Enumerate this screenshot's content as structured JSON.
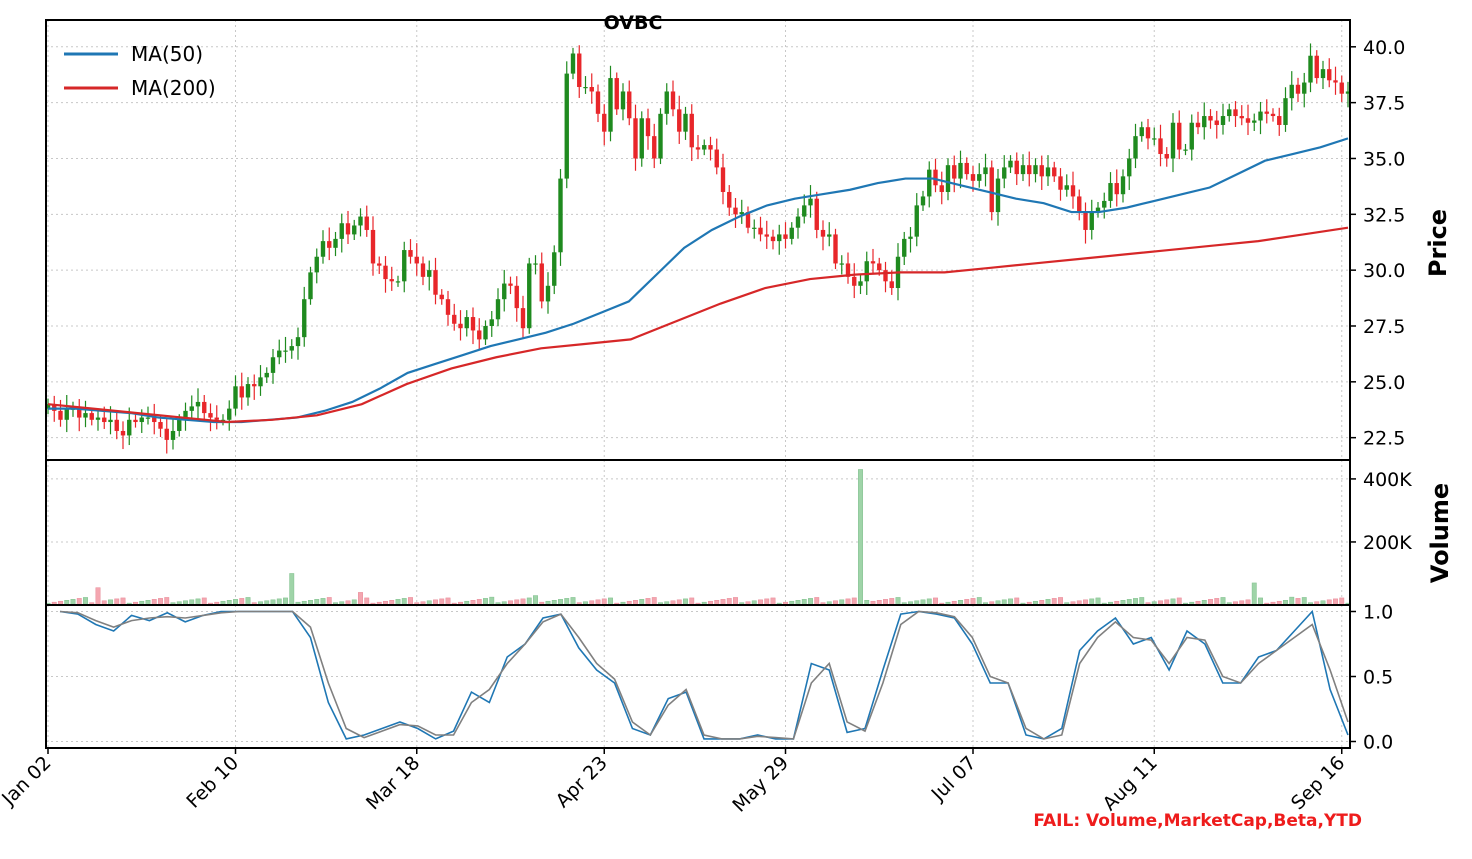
{
  "chart_data": {
    "type": "candlestick",
    "title": "OVBC",
    "x_tick_labels": [
      "Jan 02",
      "Feb 10",
      "Mar 18",
      "Apr 23",
      "May 29",
      "Jul 07",
      "Aug 11",
      "Sep 16"
    ],
    "price_panel": {
      "ylabel": "Price",
      "ylim": [
        21.5,
        41.2
      ],
      "y_ticks": [
        22.5,
        25.0,
        27.5,
        30.0,
        32.5,
        35.0,
        37.5,
        40.0
      ],
      "y_tick_labels": [
        "22.5",
        "25.0",
        "27.5",
        "30.0",
        "32.5",
        "35.0",
        "37.5",
        "40.0"
      ],
      "grid": true,
      "legend_position": "top-left",
      "up_color": "#1f8a1f",
      "down_color": "#e8262a",
      "closes": [
        24.0,
        23.7,
        23.3,
        23.8,
        23.8,
        23.4,
        23.6,
        23.3,
        23.4,
        23.2,
        23.3,
        22.8,
        22.6,
        23.3,
        23.2,
        23.4,
        23.4,
        23.2,
        22.9,
        22.4,
        22.8,
        23.3,
        23.7,
        23.9,
        24.1,
        23.6,
        23.4,
        23.3,
        23.3,
        23.8,
        24.8,
        24.3,
        24.9,
        24.8,
        25.2,
        25.4,
        26.1,
        26.4,
        26.4,
        26.6,
        27.0,
        28.7,
        29.9,
        30.6,
        31.3,
        31.0,
        31.4,
        32.1,
        31.6,
        32.0,
        32.4,
        31.8,
        30.3,
        30.2,
        29.6,
        29.5,
        29.5,
        30.9,
        30.6,
        30.3,
        29.7,
        30.0,
        28.9,
        28.7,
        28.0,
        27.6,
        27.4,
        27.9,
        27.3,
        26.9,
        27.5,
        27.8,
        28.7,
        29.4,
        29.3,
        28.3,
        27.4,
        30.3,
        30.3,
        28.6,
        29.3,
        30.8,
        34.1,
        38.8,
        39.7,
        38.2,
        38.2,
        38.0,
        37.0,
        36.2,
        38.6,
        37.2,
        38.0,
        36.8,
        35.0,
        36.8,
        36.0,
        35.0,
        37.0,
        38.0,
        37.2,
        36.2,
        37.0,
        35.5,
        35.4,
        35.6,
        35.4,
        34.6,
        33.5,
        32.8,
        32.5,
        32.6,
        31.9,
        31.9,
        31.6,
        31.5,
        31.3,
        31.6,
        31.4,
        31.9,
        32.4,
        32.9,
        33.2,
        31.8,
        31.5,
        31.6,
        30.3,
        30.3,
        29.7,
        29.3,
        29.5,
        30.4,
        30.3,
        30.0,
        29.5,
        29.2,
        30.6,
        31.4,
        31.5,
        32.9,
        33.3,
        34.5,
        33.8,
        33.5,
        34.7,
        34.1,
        34.8,
        34.3,
        34.0,
        34.3,
        34.6,
        32.6,
        34.1,
        34.6,
        34.9,
        34.3,
        34.7,
        34.3,
        34.7,
        34.2,
        34.6,
        34.2,
        33.6,
        33.8,
        33.3,
        32.6,
        31.8,
        32.6,
        32.8,
        33.1,
        33.9,
        33.4,
        34.2,
        35.0,
        36.0,
        36.4,
        35.9,
        35.9,
        35.2,
        35.0,
        36.6,
        35.4,
        35.4,
        36.6,
        36.4,
        36.9,
        36.7,
        36.5,
        36.9,
        37.2,
        36.9,
        36.8,
        36.6,
        36.7,
        37.1,
        37.0,
        36.9,
        36.5,
        37.7,
        38.3,
        37.9,
        38.4,
        39.6,
        38.6,
        39.0,
        38.5,
        38.4,
        37.9,
        38.0
      ],
      "opens": [
        23.8,
        24.0,
        23.7,
        23.3,
        23.8,
        23.8,
        23.4,
        23.6,
        23.3,
        23.4,
        23.2,
        23.3,
        22.8,
        22.6,
        23.3,
        23.2,
        23.4,
        23.4,
        23.2,
        22.9,
        22.4,
        22.8,
        23.3,
        23.7,
        23.9,
        24.1,
        23.6,
        23.4,
        23.3,
        23.3,
        23.8,
        24.8,
        24.3,
        24.9,
        24.8,
        25.2,
        25.4,
        26.1,
        26.4,
        26.4,
        26.6,
        27.0,
        28.7,
        29.9,
        30.6,
        31.3,
        31.0,
        31.4,
        32.1,
        31.6,
        32.0,
        32.4,
        31.8,
        30.3,
        30.2,
        29.6,
        29.5,
        29.5,
        30.9,
        30.6,
        30.3,
        29.7,
        30.0,
        28.9,
        28.7,
        28.0,
        27.6,
        27.4,
        27.9,
        27.3,
        26.9,
        27.5,
        27.8,
        28.7,
        29.4,
        29.3,
        28.3,
        27.4,
        30.3,
        30.3,
        28.6,
        29.3,
        30.8,
        34.1,
        38.8,
        39.7,
        38.2,
        38.2,
        38.0,
        37.0,
        36.2,
        38.6,
        37.2,
        38.0,
        36.8,
        35.0,
        36.8,
        36.0,
        35.0,
        37.0,
        38.0,
        37.2,
        36.2,
        37.0,
        35.5,
        35.4,
        35.6,
        35.4,
        34.6,
        33.5,
        32.8,
        32.5,
        32.6,
        31.9,
        31.9,
        31.6,
        31.5,
        31.3,
        31.6,
        31.4,
        31.9,
        32.4,
        32.9,
        33.2,
        31.8,
        31.5,
        31.6,
        30.3,
        30.3,
        29.7,
        29.3,
        29.5,
        30.4,
        30.3,
        30.0,
        29.5,
        29.2,
        30.6,
        31.4,
        31.5,
        32.9,
        33.3,
        34.5,
        33.8,
        33.5,
        34.7,
        34.1,
        34.8,
        34.3,
        34.0,
        34.3,
        34.6,
        32.6,
        34.1,
        34.6,
        34.9,
        34.3,
        34.7,
        34.3,
        34.7,
        34.2,
        34.6,
        34.2,
        33.6,
        33.8,
        33.3,
        32.6,
        31.8,
        32.6,
        32.8,
        33.1,
        33.9,
        33.4,
        34.2,
        35.0,
        36.0,
        36.4,
        35.9,
        35.9,
        35.2,
        35.0,
        36.6,
        35.4,
        35.4,
        36.6,
        36.4,
        36.9,
        36.7,
        36.5,
        36.9,
        37.2,
        36.9,
        36.8,
        36.6,
        36.7,
        37.1,
        37.0,
        36.9,
        36.5,
        37.7,
        38.3,
        37.9,
        38.4,
        39.6,
        38.6,
        39.0,
        38.5,
        38.4,
        37.9
      ],
      "ma50": [
        23.8,
        23.8,
        23.7,
        23.6,
        23.4,
        23.3,
        23.2,
        23.2,
        23.3,
        23.4,
        23.7,
        24.1,
        24.7,
        25.4,
        25.8,
        26.2,
        26.6,
        26.9,
        27.2,
        27.6,
        28.1,
        28.6,
        29.8,
        31.0,
        31.8,
        32.4,
        32.9,
        33.2,
        33.4,
        33.6,
        33.9,
        34.1,
        34.1,
        33.8,
        33.5,
        33.2,
        33.0,
        32.6,
        32.6,
        32.8,
        33.1,
        33.4,
        33.7,
        34.3,
        34.9,
        35.2,
        35.5,
        35.9
      ],
      "ma50_x": [
        0,
        4,
        8,
        12,
        16,
        20,
        24,
        28,
        32,
        36,
        40,
        44,
        48,
        52,
        56,
        60,
        64,
        68,
        72,
        76,
        80,
        84,
        88,
        92,
        96,
        100,
        104,
        108,
        112,
        116,
        120,
        124,
        128,
        132,
        136,
        140,
        144,
        148,
        152,
        156,
        160,
        164,
        168,
        172,
        176,
        180,
        184,
        188
      ],
      "ma200": [
        24.0,
        23.8,
        23.6,
        23.4,
        23.2,
        23.3,
        23.5,
        24.0,
        24.9,
        25.6,
        26.1,
        26.5,
        26.7,
        26.9,
        27.7,
        28.5,
        29.2,
        29.6,
        29.8,
        29.9,
        29.9,
        30.1,
        30.3,
        30.5,
        30.7,
        30.9,
        31.1,
        31.3,
        31.6,
        31.9
      ],
      "ma200_x": [
        0,
        4,
        8,
        12,
        16,
        20,
        24,
        28,
        32,
        36,
        40,
        44,
        48,
        52,
        56,
        60,
        64,
        68,
        72,
        76,
        80,
        84,
        88,
        92,
        96,
        100,
        104,
        108,
        112,
        116
      ],
      "series": [
        {
          "name": "MA(50)",
          "color": "#1f77b4"
        },
        {
          "name": "MA(200)",
          "color": "#d62728"
        }
      ]
    },
    "volume_panel": {
      "ylabel": "Volume",
      "ylim": [
        0,
        460000
      ],
      "y_ticks": [
        200000,
        400000
      ],
      "y_tick_labels": [
        "200K",
        "400K"
      ],
      "grid": true,
      "spikes": [
        {
          "idx": 8,
          "value": 55000,
          "dir": "down"
        },
        {
          "idx": 39,
          "value": 100000,
          "dir": "up"
        },
        {
          "idx": 50,
          "value": 40000,
          "dir": "down"
        },
        {
          "idx": 71,
          "value": 25000,
          "dir": "up"
        },
        {
          "idx": 78,
          "value": 30000,
          "dir": "up"
        },
        {
          "idx": 130,
          "value": 430000,
          "dir": "up"
        },
        {
          "idx": 131,
          "value": 15000,
          "dir": "up"
        },
        {
          "idx": 193,
          "value": 70000,
          "dir": "up"
        },
        {
          "idx": 199,
          "value": 25000,
          "dir": "up"
        }
      ]
    },
    "oscillator_panel": {
      "ylim": [
        -0.05,
        1.05
      ],
      "y_ticks": [
        0.0,
        0.5,
        1.0
      ],
      "y_tick_labels": [
        "0.0",
        "0.5",
        "1.0"
      ],
      "grid": true,
      "series": [
        {
          "color": "#1f77b4",
          "values": [
            1.0,
            0.98,
            0.9,
            0.85,
            0.97,
            0.93,
            0.99,
            0.92,
            0.97,
            1.0,
            1.0,
            1.0,
            1.0,
            1.0,
            0.8,
            0.3,
            0.02,
            0.05,
            0.1,
            0.15,
            0.1,
            0.02,
            0.08,
            0.38,
            0.3,
            0.65,
            0.75,
            0.95,
            0.98,
            0.72,
            0.55,
            0.45,
            0.1,
            0.05,
            0.33,
            0.38,
            0.02,
            0.02,
            0.02,
            0.05,
            0.02,
            0.02,
            0.6,
            0.55,
            0.07,
            0.1,
            0.55,
            0.98,
            1.0,
            0.98,
            0.95,
            0.75,
            0.45,
            0.45,
            0.05,
            0.02,
            0.1,
            0.7,
            0.85,
            0.95,
            0.75,
            0.8,
            0.55,
            0.85,
            0.75,
            0.45,
            0.45,
            0.65,
            0.7,
            0.85,
            1.0,
            0.4,
            0.05
          ]
        },
        {
          "color": "#808080",
          "values": [
            1.0,
            0.99,
            0.93,
            0.88,
            0.93,
            0.95,
            0.96,
            0.95,
            0.97,
            0.99,
            1.0,
            1.0,
            1.0,
            1.0,
            0.88,
            0.45,
            0.1,
            0.03,
            0.08,
            0.13,
            0.12,
            0.05,
            0.05,
            0.3,
            0.4,
            0.6,
            0.75,
            0.92,
            0.98,
            0.8,
            0.6,
            0.48,
            0.15,
            0.05,
            0.28,
            0.4,
            0.05,
            0.02,
            0.02,
            0.04,
            0.03,
            0.02,
            0.45,
            0.6,
            0.15,
            0.08,
            0.45,
            0.9,
            1.0,
            0.99,
            0.96,
            0.8,
            0.5,
            0.45,
            0.1,
            0.02,
            0.05,
            0.6,
            0.8,
            0.92,
            0.8,
            0.78,
            0.6,
            0.8,
            0.78,
            0.5,
            0.45,
            0.6,
            0.7,
            0.8,
            0.9,
            0.55,
            0.15
          ]
        }
      ]
    },
    "annotation": "FAIL: Volume,MarketCap,Beta,YTD"
  }
}
